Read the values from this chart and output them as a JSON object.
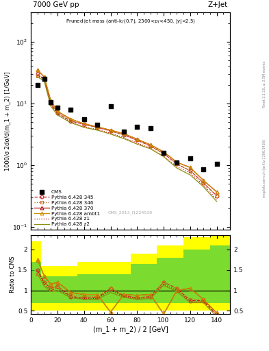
{
  "title_top": "7000 GeV pp",
  "title_right": "Z+Jet",
  "plot_title": "Pruned jet mass (anti-k$_T$(0.7), 2300<p$_T$<450, |y|<2.5)",
  "ylabel_main": "1000/σ 2dσ/d(m_1 + m_2) [1/GeV]",
  "ylabel_ratio": "Ratio to CMS",
  "xlabel": "(m_1 + m_2) / 2 [GeV]",
  "watermark": "CMS_2013_I1224539",
  "rivet_label": "Rivet 3.1.10, ≥ 2.5M events",
  "mcplots_label": "mcplots.cern.ch [arXiv:1306.3436]",
  "x_data": [
    5,
    10,
    15,
    20,
    30,
    40,
    50,
    60,
    70,
    80,
    90,
    100,
    110,
    120,
    130,
    140
  ],
  "cms_y": [
    20,
    25,
    10.5,
    8.5,
    8.0,
    5.5,
    4.5,
    9.0,
    3.5,
    4.2,
    4.0,
    1.6,
    1.1,
    1.3,
    0.85,
    1.05
  ],
  "p345_y": [
    30,
    25,
    10,
    7,
    5.2,
    4.6,
    4.1,
    3.6,
    3.1,
    2.55,
    2.05,
    1.55,
    1.05,
    0.82,
    0.52,
    0.32
  ],
  "p346_y": [
    28,
    25,
    10,
    7.1,
    5.4,
    4.6,
    4.1,
    3.6,
    3.1,
    2.55,
    2.05,
    1.55,
    1.05,
    0.82,
    0.52,
    0.32
  ],
  "p370_y": [
    35,
    27,
    11,
    7.5,
    5.6,
    4.7,
    4.2,
    3.7,
    3.25,
    2.65,
    2.15,
    1.65,
    1.12,
    0.92,
    0.57,
    0.37
  ],
  "pambt1_y": [
    35,
    27,
    11,
    7.5,
    5.6,
    4.7,
    4.2,
    3.7,
    3.25,
    2.65,
    2.15,
    1.65,
    1.12,
    0.92,
    0.57,
    0.37
  ],
  "pz1_y": [
    29,
    24,
    9.5,
    6.8,
    5.0,
    4.2,
    3.8,
    3.3,
    2.8,
    2.3,
    1.9,
    1.4,
    0.95,
    0.75,
    0.48,
    0.28
  ],
  "pz2_y": [
    27,
    23,
    9.0,
    6.5,
    4.9,
    4.1,
    3.7,
    3.2,
    2.7,
    2.2,
    1.85,
    1.38,
    0.9,
    0.7,
    0.45,
    0.26
  ],
  "ratio_x": [
    5,
    10,
    15,
    20,
    30,
    40,
    50,
    60,
    70,
    80,
    90,
    100,
    110,
    120,
    130,
    140
  ],
  "r345": [
    1.5,
    1.2,
    1.05,
    1.1,
    0.85,
    0.82,
    0.82,
    1.05,
    0.87,
    0.82,
    0.85,
    1.2,
    1.05,
    0.75,
    0.75,
    0.4
  ],
  "r346": [
    1.4,
    1.2,
    1.05,
    1.1,
    0.9,
    0.85,
    0.85,
    1.05,
    0.87,
    0.82,
    0.85,
    1.2,
    1.05,
    0.78,
    0.78,
    0.42
  ],
  "r370": [
    1.75,
    1.35,
    1.15,
    1.2,
    0.95,
    0.9,
    0.9,
    0.47,
    0.9,
    0.88,
    0.9,
    0.42,
    1.0,
    1.05,
    0.78,
    0.45
  ],
  "rambt1": [
    1.75,
    1.35,
    1.15,
    1.2,
    0.95,
    0.9,
    0.9,
    0.47,
    0.9,
    0.88,
    0.9,
    0.42,
    1.0,
    1.05,
    0.78,
    0.45
  ],
  "rz1": [
    1.5,
    1.15,
    1.0,
    1.05,
    0.82,
    0.8,
    0.8,
    1.0,
    0.85,
    0.8,
    0.82,
    1.15,
    1.0,
    0.72,
    0.72,
    0.38
  ],
  "rz2": [
    1.4,
    1.1,
    0.97,
    1.0,
    0.82,
    0.78,
    0.78,
    0.95,
    0.83,
    0.78,
    0.8,
    1.12,
    0.97,
    0.7,
    0.7,
    0.36
  ],
  "band_x_edges": [
    0,
    7.5,
    12.5,
    17.5,
    25,
    35,
    45,
    55,
    65,
    75,
    85,
    95,
    105,
    115,
    125,
    135,
    150
  ],
  "band_yellow_lo": [
    0.5,
    0.5,
    0.5,
    0.5,
    0.5,
    0.5,
    0.5,
    0.5,
    0.5,
    0.5,
    0.5,
    0.5,
    0.5,
    0.5,
    0.5,
    0.5
  ],
  "band_yellow_hi": [
    2.2,
    1.6,
    1.6,
    1.6,
    1.6,
    1.7,
    1.7,
    1.7,
    1.7,
    1.9,
    1.9,
    2.1,
    2.1,
    2.3,
    2.3,
    2.4
  ],
  "band_green_lo": [
    0.7,
    0.7,
    0.7,
    0.7,
    0.7,
    0.7,
    0.7,
    0.7,
    0.7,
    0.7,
    0.7,
    0.7,
    0.7,
    0.7,
    0.7,
    0.7
  ],
  "band_green_hi": [
    1.7,
    1.35,
    1.35,
    1.35,
    1.35,
    1.4,
    1.4,
    1.4,
    1.4,
    1.65,
    1.65,
    1.8,
    1.8,
    2.0,
    2.0,
    2.1
  ],
  "color_345": "#c82020",
  "color_346": "#c87020",
  "color_370": "#b01010",
  "color_ambt1": "#d09000",
  "color_z1": "#cc1010",
  "color_z2": "#909010",
  "xlim_main": [
    0,
    150
  ],
  "ylim_main_log": [
    0.09,
    300
  ],
  "xlim_ratio": [
    0,
    150
  ],
  "ylim_ratio": [
    0.42,
    2.35
  ],
  "yticks_ratio": [
    0.5,
    1.0,
    1.5,
    2.0
  ],
  "ytick_labels_ratio": [
    "0.5",
    "1",
    "1.5",
    "2"
  ]
}
